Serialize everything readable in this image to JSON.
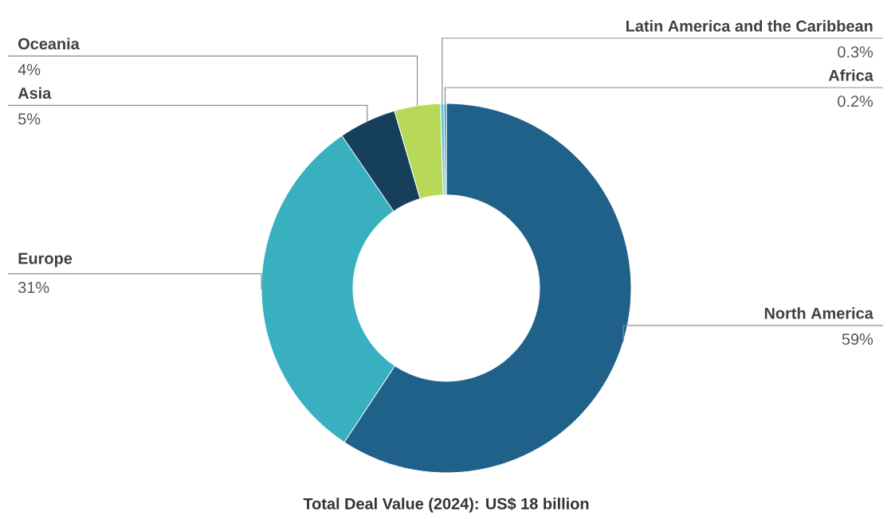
{
  "chart_data": {
    "type": "donut",
    "title": "Total Deal Value (2024): US$ 18 billion",
    "categories": [
      "North America",
      "Europe",
      "Asia",
      "Oceania",
      "Latin America and the Caribbean",
      "Africa"
    ],
    "values": [
      59,
      31,
      5,
      4,
      0.3,
      0.2
    ],
    "value_labels": [
      "59%",
      "31%",
      "5%",
      "4%",
      "0.3%",
      "0.2%"
    ],
    "colors": [
      "#1f6189",
      "#38b0bf",
      "#163f5c",
      "#b8d957",
      "#5fc8d0",
      "#2f8fb5"
    ]
  }
}
